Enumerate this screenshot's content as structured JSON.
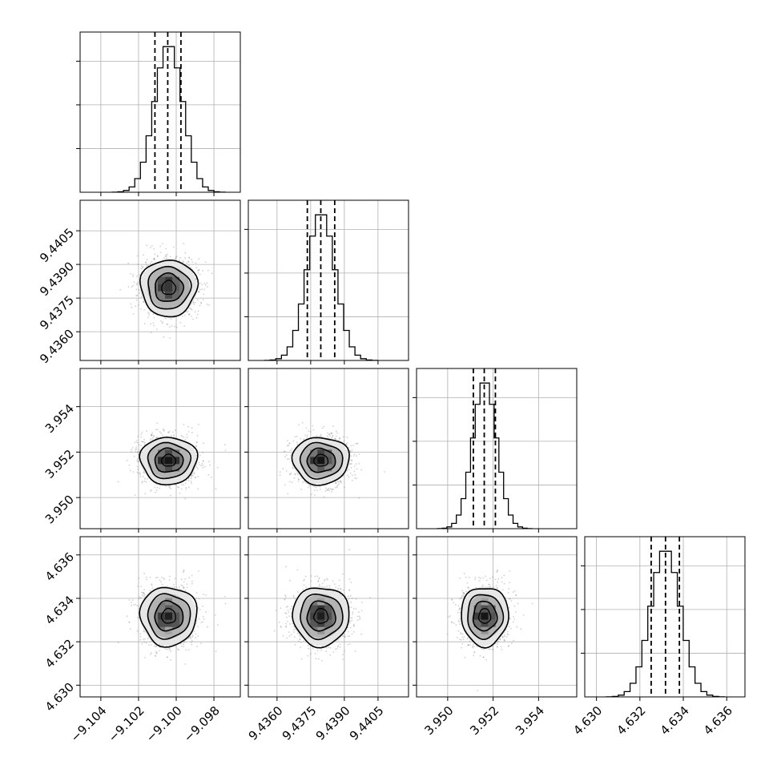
{
  "chart_data": {
    "type": "corner",
    "parameters": [
      {
        "range": [
          -9.1051,
          -9.0966
        ],
        "ticks": [
          -9.104,
          -9.102,
          -9.1,
          -9.098
        ],
        "tick_labels": [
          "−9.104",
          "−9.102",
          "−9.100",
          "−9.098"
        ],
        "mean": -9.1004,
        "sd": 0.00075,
        "quantiles": [
          -9.10113,
          -9.10045,
          -9.09975
        ]
      },
      {
        "range": [
          9.43472,
          9.44186
        ],
        "ticks": [
          9.436,
          9.4375,
          9.439,
          9.4405
        ],
        "tick_labels": [
          "9.4360",
          "9.4375",
          "9.4390",
          "9.4405"
        ],
        "mean": 9.43796,
        "sd": 0.00063,
        "quantiles": [
          9.43735,
          9.43795,
          9.43857
        ]
      },
      {
        "range": [
          3.94863,
          3.95568
        ],
        "ticks": [
          3.95,
          3.952,
          3.954
        ],
        "tick_labels": [
          "3.950",
          "3.952",
          "3.954"
        ],
        "mean": 3.95163,
        "sd": 0.00052,
        "quantiles": [
          3.95113,
          3.95161,
          3.9521
        ]
      },
      {
        "range": [
          4.62946,
          4.63684
        ],
        "ticks": [
          4.63,
          4.632,
          4.634,
          4.636
        ],
        "tick_labels": [
          "4.630",
          "4.632",
          "4.634",
          "4.636"
        ],
        "mean": 4.63318,
        "sd": 0.00068,
        "quantiles": [
          4.63252,
          4.63318,
          4.63382
        ]
      }
    ],
    "histogram_bins": 20,
    "contour_levels": [
      0.118,
      0.393,
      0.675,
      0.865
    ],
    "grid": true,
    "legend": "none"
  }
}
